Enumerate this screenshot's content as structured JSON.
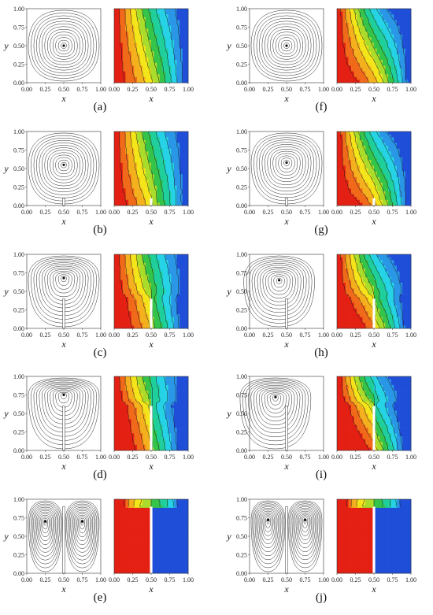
{
  "figure": {
    "x_label": "x",
    "y_label": "y",
    "ticks": [
      "0.00",
      "0.25",
      "0.50",
      "0.75",
      "1.00"
    ],
    "colormap": [
      "#e32013",
      "#f06a1a",
      "#f5b01e",
      "#f4e51a",
      "#a9dc2b",
      "#35c44a",
      "#1fcf9c",
      "#26d3e6",
      "#2a96e6",
      "#1f4fd9"
    ]
  },
  "chart_data": [
    {
      "type": "figure-panel",
      "label": "(a)",
      "fin_height": 0.0,
      "vortices": [
        [
          0.5,
          0.5
        ]
      ],
      "regime": "uniform"
    },
    {
      "type": "figure-panel",
      "label": "(b)",
      "fin_height": 0.1,
      "vortices": [
        [
          0.5,
          0.55
        ]
      ],
      "regime": "uniform"
    },
    {
      "type": "figure-panel",
      "label": "(c)",
      "fin_height": 0.4,
      "vortices": [
        [
          0.5,
          0.68
        ]
      ],
      "regime": "uniform"
    },
    {
      "type": "figure-panel",
      "label": "(d)",
      "fin_height": 0.6,
      "vortices": [
        [
          0.5,
          0.75
        ]
      ],
      "regime": "uniform"
    },
    {
      "type": "figure-panel",
      "label": "(e)",
      "fin_height": 0.9,
      "vortices": [
        [
          0.25,
          0.7
        ],
        [
          0.75,
          0.7
        ]
      ],
      "regime": "split"
    },
    {
      "type": "figure-panel",
      "label": "(f)",
      "fin_height": 0.0,
      "vortices": [
        [
          0.5,
          0.5
        ]
      ],
      "regime": "convective"
    },
    {
      "type": "figure-panel",
      "label": "(g)",
      "fin_height": 0.1,
      "vortices": [
        [
          0.5,
          0.58
        ]
      ],
      "regime": "convective"
    },
    {
      "type": "figure-panel",
      "label": "(h)",
      "fin_height": 0.4,
      "vortices": [
        [
          0.4,
          0.65
        ]
      ],
      "regime": "convective"
    },
    {
      "type": "figure-panel",
      "label": "(i)",
      "fin_height": 0.6,
      "vortices": [
        [
          0.35,
          0.72
        ]
      ],
      "regime": "convective"
    },
    {
      "type": "figure-panel",
      "label": "(j)",
      "fin_height": 0.9,
      "vortices": [
        [
          0.25,
          0.72
        ],
        [
          0.75,
          0.72
        ]
      ],
      "regime": "split"
    }
  ]
}
